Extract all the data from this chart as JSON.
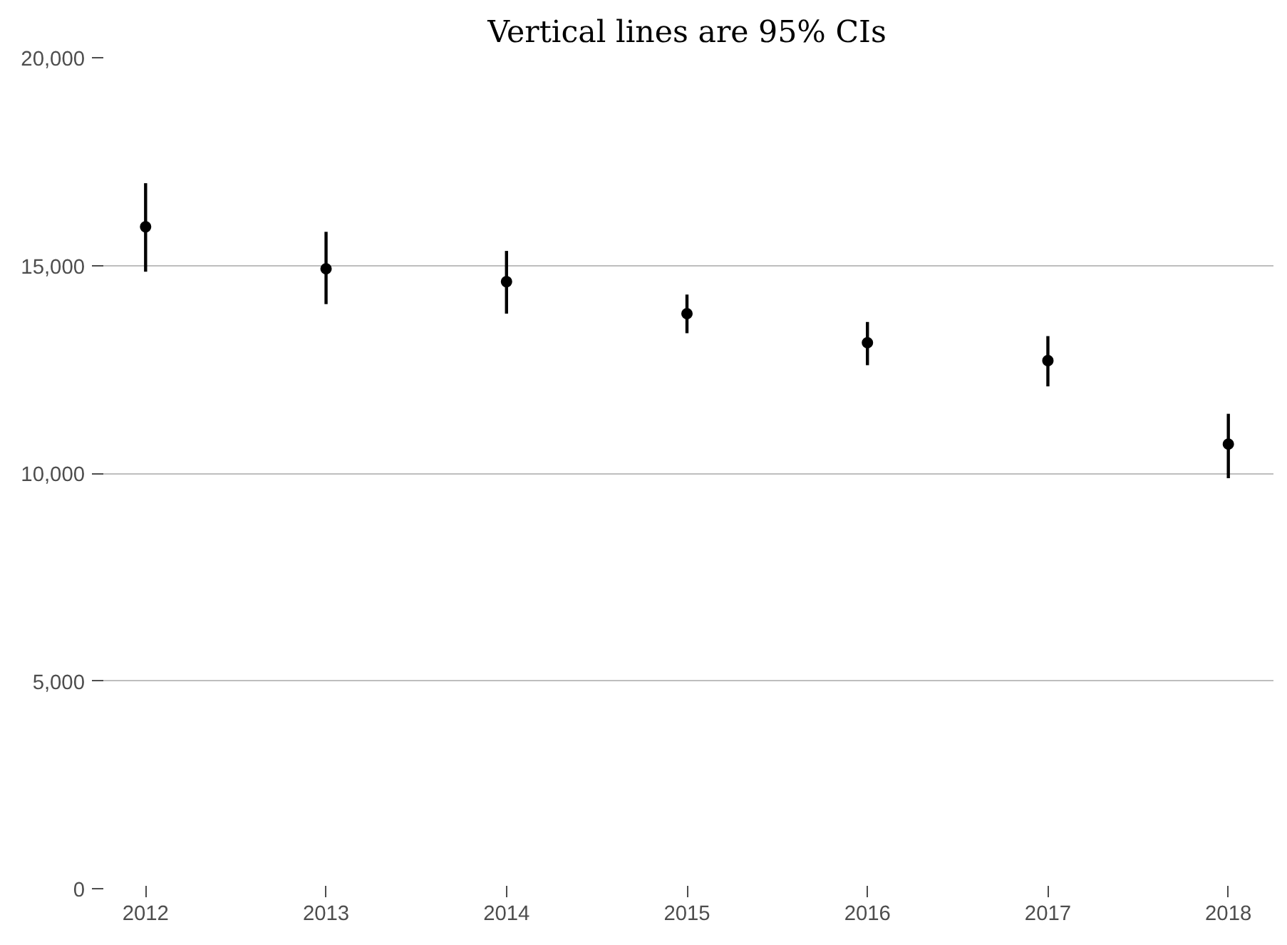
{
  "chart_data": {
    "type": "scatter",
    "title": "Vertical lines are 95% CIs",
    "categories": [
      "2012",
      "2013",
      "2014",
      "2015",
      "2016",
      "2017",
      "2018"
    ],
    "values": [
      15930,
      14920,
      14610,
      13840,
      13140,
      12710,
      10700
    ],
    "errors": [
      [
        14850,
        16980
      ],
      [
        14070,
        15810
      ],
      [
        13840,
        15350
      ],
      [
        13370,
        14300
      ],
      [
        12600,
        13640
      ],
      [
        12090,
        13300
      ],
      [
        9880,
        11430
      ]
    ],
    "color": "#000000",
    "marker": "circle",
    "ylim": [
      0,
      20000
    ],
    "yticks": [
      0,
      {
        "value": 5000,
        "label": "5,000"
      },
      {
        "value": 10000,
        "label": "10,000"
      },
      {
        "value": 15000,
        "label": "15,000"
      },
      {
        "value": 20000,
        "label": "20,000"
      }
    ],
    "grid": "y"
  }
}
